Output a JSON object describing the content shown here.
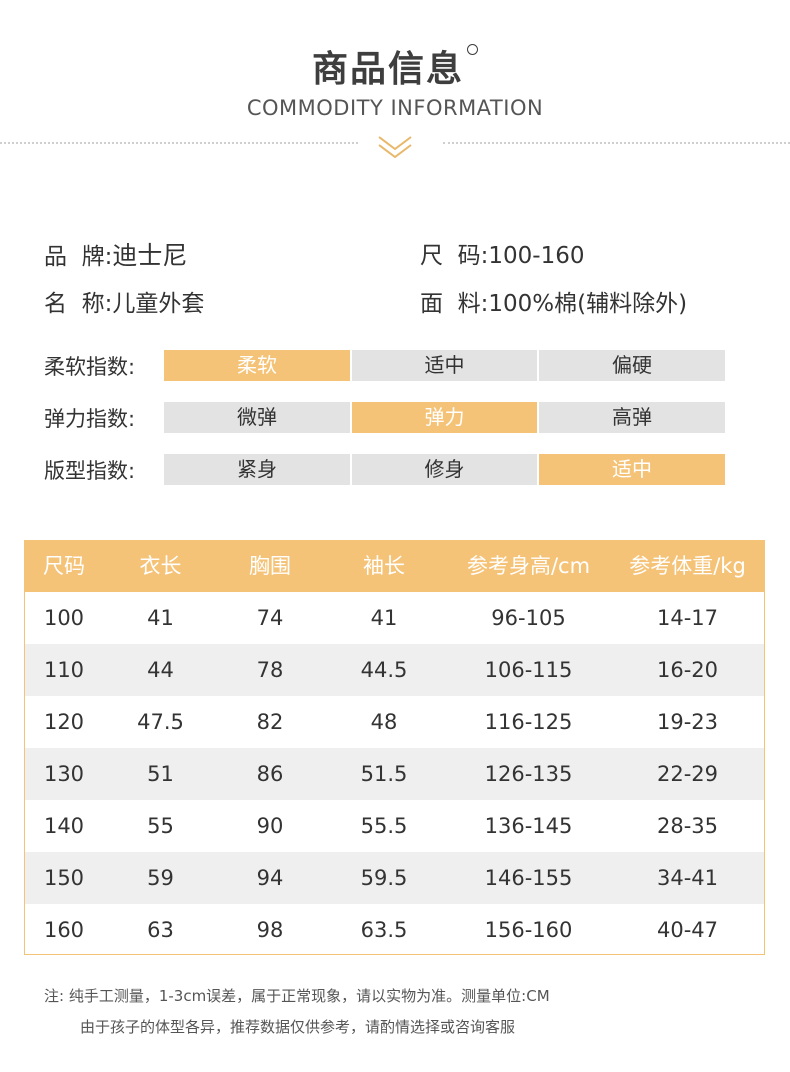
{
  "header": {
    "title": "商品信息",
    "subtitle": "COMMODITY INFORMATION"
  },
  "info": {
    "brand_label": "品  牌:",
    "brand_value": "迪士尼",
    "size_label": "尺  码:",
    "size_value": "100-160",
    "name_label": "名  称:",
    "name_value": "儿童外套",
    "fabric_label": "面  料:",
    "fabric_value": "100%棉(辅料除外)"
  },
  "indices": [
    {
      "label": "柔软指数:",
      "options": [
        "柔软",
        "适中",
        "偏硬"
      ],
      "selected": 0
    },
    {
      "label": "弹力指数:",
      "options": [
        "微弹",
        "弹力",
        "高弹"
      ],
      "selected": 1
    },
    {
      "label": "版型指数:",
      "options": [
        "紧身",
        "修身",
        "适中"
      ],
      "selected": 2
    }
  ],
  "colors": {
    "accent": "#f5c377",
    "inactive": "#e3e3e3",
    "row_alt": "#efefef"
  },
  "size_table": {
    "headers": [
      "尺码",
      "衣长",
      "胸围",
      "袖长",
      "参考身高/cm",
      "参考体重/kg"
    ],
    "rows": [
      [
        "100",
        "41",
        "74",
        "41",
        "96-105",
        "14-17"
      ],
      [
        "110",
        "44",
        "78",
        "44.5",
        "106-115",
        "16-20"
      ],
      [
        "120",
        "47.5",
        "82",
        "48",
        "116-125",
        "19-23"
      ],
      [
        "130",
        "51",
        "86",
        "51.5",
        "126-135",
        "22-29"
      ],
      [
        "140",
        "55",
        "90",
        "55.5",
        "136-145",
        "28-35"
      ],
      [
        "150",
        "59",
        "94",
        "59.5",
        "146-155",
        "34-41"
      ],
      [
        "160",
        "63",
        "98",
        "63.5",
        "156-160",
        "40-47"
      ]
    ]
  },
  "notes": {
    "line1": "注:  纯手工测量，1-3cm误差，属于正常现象，请以实物为准。测量单位:CM",
    "line2": "由于孩子的体型各异，推荐数据仅供参考，请酌情选择或咨询客服"
  }
}
